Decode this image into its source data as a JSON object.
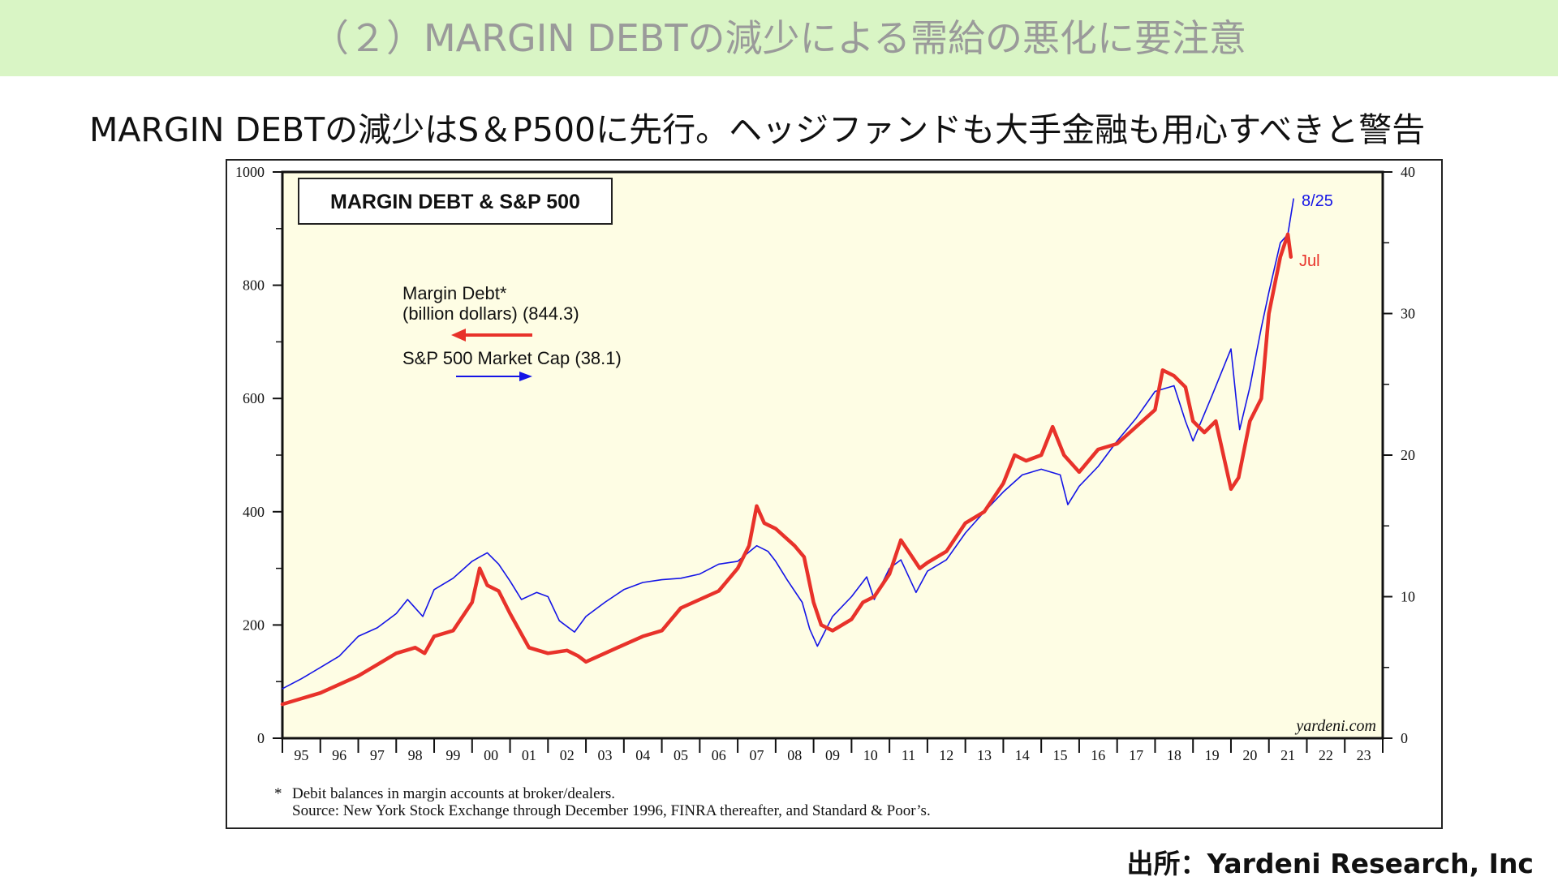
{
  "header": {
    "banner": "（２）MARGIN DEBTの減少による需給の悪化に要注意",
    "subtitle": "MARGIN DEBTの減少はS＆P500に先行。ヘッジファンドも大手金融も用心すべきと警告",
    "source": "出所：Yardeni Research, Inc"
  },
  "colors": {
    "banner_bg": "#d9f5c5",
    "plot_bg": "#fefde4",
    "margin_debt": "#e8322a",
    "sp500": "#1414e6"
  },
  "chart_data": {
    "type": "line",
    "title": "MARGIN DEBT & S&P 500",
    "watermark": "yardeni.com",
    "xlim": [
      1995,
      2024
    ],
    "x_tick_labels": [
      "95",
      "96",
      "97",
      "98",
      "99",
      "00",
      "01",
      "02",
      "03",
      "04",
      "05",
      "06",
      "07",
      "08",
      "09",
      "10",
      "11",
      "12",
      "13",
      "14",
      "15",
      "16",
      "17",
      "18",
      "19",
      "20",
      "21",
      "22",
      "23"
    ],
    "y_left": {
      "ylim": [
        0,
        1000
      ],
      "ticks": [
        0,
        200,
        400,
        600,
        800,
        1000
      ],
      "minor_step": 100
    },
    "y_right": {
      "ylim": [
        0,
        40
      ],
      "ticks": [
        0,
        10,
        20,
        30,
        40
      ],
      "minor_step": 5
    },
    "legend": [
      {
        "line1": "Margin Debt*",
        "line2": "(billion dollars) (844.3)",
        "series": "margin_debt",
        "arrow": "left"
      },
      {
        "line1": "S&P 500 Market Cap (38.1)",
        "series": "sp500",
        "arrow": "right"
      }
    ],
    "end_labels": {
      "sp500": "8/25",
      "margin_debt": "Jul"
    },
    "footnote": [
      "Debit balances in margin accounts at broker/dealers.",
      "Source: New York Stock Exchange through December 1996, FINRA thereafter, and Standard & Poor’s."
    ],
    "footnote_marker": "*",
    "series": [
      {
        "id": "margin_debt",
        "axis": "left",
        "x": [
          1995.0,
          1995.5,
          1996.0,
          1996.5,
          1997.0,
          1997.5,
          1998.0,
          1998.5,
          1998.75,
          1999.0,
          1999.5,
          2000.0,
          2000.2,
          2000.4,
          2000.7,
          2001.0,
          2001.5,
          2002.0,
          2002.5,
          2002.8,
          2003.0,
          2003.5,
          2004.0,
          2004.5,
          2005.0,
          2005.5,
          2006.0,
          2006.5,
          2007.0,
          2007.3,
          2007.5,
          2007.7,
          2008.0,
          2008.5,
          2008.75,
          2009.0,
          2009.2,
          2009.5,
          2010.0,
          2010.3,
          2010.6,
          2011.0,
          2011.3,
          2011.6,
          2011.8,
          2012.0,
          2012.5,
          2013.0,
          2013.5,
          2014.0,
          2014.3,
          2014.6,
          2015.0,
          2015.3,
          2015.6,
          2016.0,
          2016.5,
          2017.0,
          2017.5,
          2018.0,
          2018.2,
          2018.5,
          2018.8,
          2019.0,
          2019.3,
          2019.6,
          2020.0,
          2020.2,
          2020.5,
          2020.8,
          2021.0,
          2021.3,
          2021.5,
          2021.58
        ],
        "y": [
          60,
          70,
          80,
          95,
          110,
          130,
          150,
          160,
          150,
          180,
          190,
          240,
          300,
          270,
          260,
          220,
          160,
          150,
          155,
          145,
          135,
          150,
          165,
          180,
          190,
          230,
          245,
          260,
          300,
          340,
          410,
          380,
          370,
          340,
          320,
          240,
          200,
          190,
          210,
          240,
          250,
          290,
          350,
          320,
          300,
          310,
          330,
          380,
          400,
          450,
          500,
          490,
          500,
          550,
          500,
          470,
          510,
          520,
          550,
          580,
          650,
          640,
          620,
          560,
          540,
          560,
          440,
          460,
          560,
          600,
          750,
          850,
          890,
          850
        ]
      },
      {
        "id": "sp500",
        "axis": "right",
        "x": [
          1995.0,
          1995.5,
          1996.0,
          1996.5,
          1997.0,
          1997.5,
          1998.0,
          1998.3,
          1998.7,
          1999.0,
          1999.5,
          2000.0,
          2000.2,
          2000.4,
          2000.7,
          2001.0,
          2001.3,
          2001.7,
          2002.0,
          2002.3,
          2002.7,
          2003.0,
          2003.5,
          2004.0,
          2004.5,
          2005.0,
          2005.5,
          2006.0,
          2006.5,
          2007.0,
          2007.5,
          2007.8,
          2008.0,
          2008.3,
          2008.7,
          2008.9,
          2009.1,
          2009.5,
          2010.0,
          2010.4,
          2010.6,
          2011.0,
          2011.3,
          2011.7,
          2012.0,
          2012.5,
          2013.0,
          2013.5,
          2014.0,
          2014.5,
          2015.0,
          2015.5,
          2015.7,
          2016.0,
          2016.5,
          2017.0,
          2017.5,
          2018.0,
          2018.5,
          2018.8,
          2019.0,
          2019.5,
          2020.0,
          2020.15,
          2020.23,
          2020.5,
          2020.8,
          2021.0,
          2021.3,
          2021.5,
          2021.65
        ],
        "y": [
          3.5,
          4.2,
          5.0,
          5.8,
          7.2,
          7.8,
          8.8,
          9.8,
          8.6,
          10.5,
          11.3,
          12.5,
          12.8,
          13.1,
          12.3,
          11.1,
          9.8,
          10.3,
          10.0,
          8.3,
          7.5,
          8.6,
          9.6,
          10.5,
          11.0,
          11.2,
          11.3,
          11.6,
          12.3,
          12.5,
          13.6,
          13.2,
          12.5,
          11.2,
          9.6,
          7.7,
          6.5,
          8.6,
          10.0,
          11.4,
          9.8,
          12.0,
          12.6,
          10.3,
          11.8,
          12.6,
          14.5,
          16.0,
          17.4,
          18.6,
          19.0,
          18.6,
          16.5,
          17.8,
          19.2,
          21.0,
          22.6,
          24.5,
          24.9,
          22.4,
          21.0,
          24.2,
          27.5,
          23.6,
          21.8,
          24.8,
          29.0,
          31.5,
          35.0,
          35.6,
          38.1
        ]
      }
    ]
  }
}
